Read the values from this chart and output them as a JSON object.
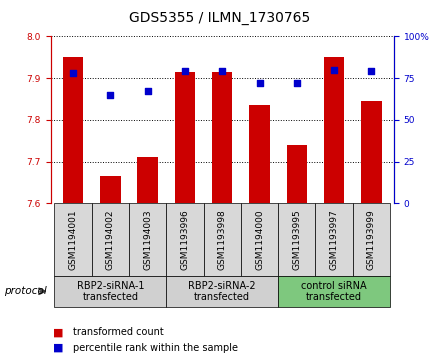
{
  "title": "GDS5355 / ILMN_1730765",
  "samples": [
    "GSM1194001",
    "GSM1194002",
    "GSM1194003",
    "GSM1193996",
    "GSM1193998",
    "GSM1194000",
    "GSM1193995",
    "GSM1193997",
    "GSM1193999"
  ],
  "bar_values": [
    7.95,
    7.665,
    7.71,
    7.915,
    7.915,
    7.835,
    7.74,
    7.95,
    7.845
  ],
  "percentile_values": [
    78,
    65,
    67,
    79,
    79,
    72,
    72,
    80,
    79
  ],
  "ylim_left": [
    7.6,
    8.0
  ],
  "yticks_left": [
    7.6,
    7.7,
    7.8,
    7.9,
    8.0
  ],
  "ylim_right": [
    0,
    100
  ],
  "yticks_right": [
    0,
    25,
    50,
    75,
    100
  ],
  "yticklabels_right": [
    "0",
    "25",
    "50",
    "75",
    "100%"
  ],
  "bar_color": "#cc0000",
  "dot_color": "#0000cc",
  "bar_bottom": 7.6,
  "groups": [
    {
      "label": "RBP2-siRNA-1\ntransfected",
      "indices": [
        0,
        1,
        2
      ],
      "color": "#d0d0d0"
    },
    {
      "label": "RBP2-siRNA-2\ntransfected",
      "indices": [
        3,
        4,
        5
      ],
      "color": "#d0d0d0"
    },
    {
      "label": "control siRNA\ntransfected",
      "indices": [
        6,
        7,
        8
      ],
      "color": "#7ec87e"
    }
  ],
  "protocol_label": "protocol",
  "legend_bar_label": "transformed count",
  "legend_dot_label": "percentile rank within the sample",
  "title_fontsize": 10,
  "tick_fontsize": 6.5,
  "label_fontsize": 7.5,
  "group_fontsize": 7,
  "legend_fontsize": 7
}
